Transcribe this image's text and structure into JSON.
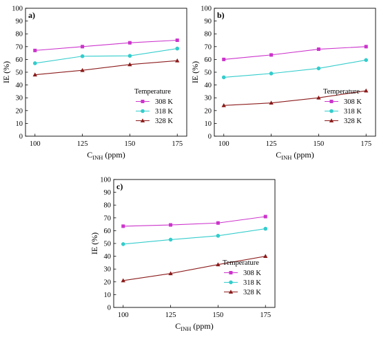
{
  "chart_data": [
    {
      "type": "line",
      "panel_label": "a)",
      "xlabel_main": "C",
      "xlabel_sub": "INH",
      "xlabel_unit": " (ppm)",
      "ylabel": "IE (%)",
      "x": [
        100,
        125,
        150,
        175
      ],
      "xlim": [
        95,
        180
      ],
      "ylim": [
        0,
        100
      ],
      "xticks": [
        "100",
        "125",
        "150",
        "175"
      ],
      "yticks": [
        "0",
        "10",
        "20",
        "30",
        "40",
        "50",
        "60",
        "70",
        "80",
        "90",
        "100"
      ],
      "legend_title": "Temperature",
      "legend_position": "bottom-right",
      "series": [
        {
          "name": "308 K",
          "values": [
            67,
            70,
            73,
            75
          ],
          "color": "#cc33cc",
          "marker": "square"
        },
        {
          "name": "318 K",
          "values": [
            57,
            62.5,
            62.8,
            68.5
          ],
          "color": "#33cccc",
          "marker": "circle"
        },
        {
          "name": "328 K",
          "values": [
            48,
            51.5,
            56,
            59
          ],
          "color": "#8b1a1a",
          "marker": "triangle"
        }
      ]
    },
    {
      "type": "line",
      "panel_label": "b)",
      "xlabel_main": "C",
      "xlabel_sub": "INH",
      "xlabel_unit": " (ppm)",
      "ylabel": "IE (%)",
      "x": [
        100,
        125,
        150,
        175
      ],
      "xlim": [
        95,
        180
      ],
      "ylim": [
        0,
        100
      ],
      "xticks": [
        "100",
        "125",
        "150",
        "175"
      ],
      "yticks": [
        "0",
        "10",
        "20",
        "30",
        "40",
        "50",
        "60",
        "70",
        "80",
        "90",
        "100"
      ],
      "legend_title": "Temperature",
      "legend_position": "bottom-right",
      "series": [
        {
          "name": "308 K",
          "values": [
            60,
            63.5,
            68,
            70
          ],
          "color": "#cc33cc",
          "marker": "square"
        },
        {
          "name": "318 K",
          "values": [
            46,
            49,
            53,
            59.5
          ],
          "color": "#33cccc",
          "marker": "circle"
        },
        {
          "name": "328 K",
          "values": [
            24,
            26,
            30,
            35.5
          ],
          "color": "#8b1a1a",
          "marker": "triangle"
        }
      ]
    },
    {
      "type": "line",
      "panel_label": "c)",
      "xlabel_main": "C",
      "xlabel_sub": "INH",
      "xlabel_unit": " (ppm)",
      "ylabel": "IE (%)",
      "x": [
        100,
        125,
        150,
        175
      ],
      "xlim": [
        95,
        180
      ],
      "ylim": [
        0,
        100
      ],
      "xticks": [
        "100",
        "125",
        "150",
        "175"
      ],
      "yticks": [
        "0",
        "10",
        "20",
        "30",
        "40",
        "50",
        "60",
        "70",
        "80",
        "90",
        "100"
      ],
      "legend_title": "Temperature",
      "legend_position": "bottom-right",
      "series": [
        {
          "name": "308 K",
          "values": [
            63.5,
            64.5,
            66,
            71
          ],
          "color": "#cc33cc",
          "marker": "square"
        },
        {
          "name": "318 K",
          "values": [
            49.5,
            53,
            56,
            61.5
          ],
          "color": "#33cccc",
          "marker": "circle"
        },
        {
          "name": "328 K",
          "values": [
            21,
            26.5,
            33.5,
            40
          ],
          "color": "#8b1a1a",
          "marker": "triangle"
        }
      ]
    }
  ]
}
